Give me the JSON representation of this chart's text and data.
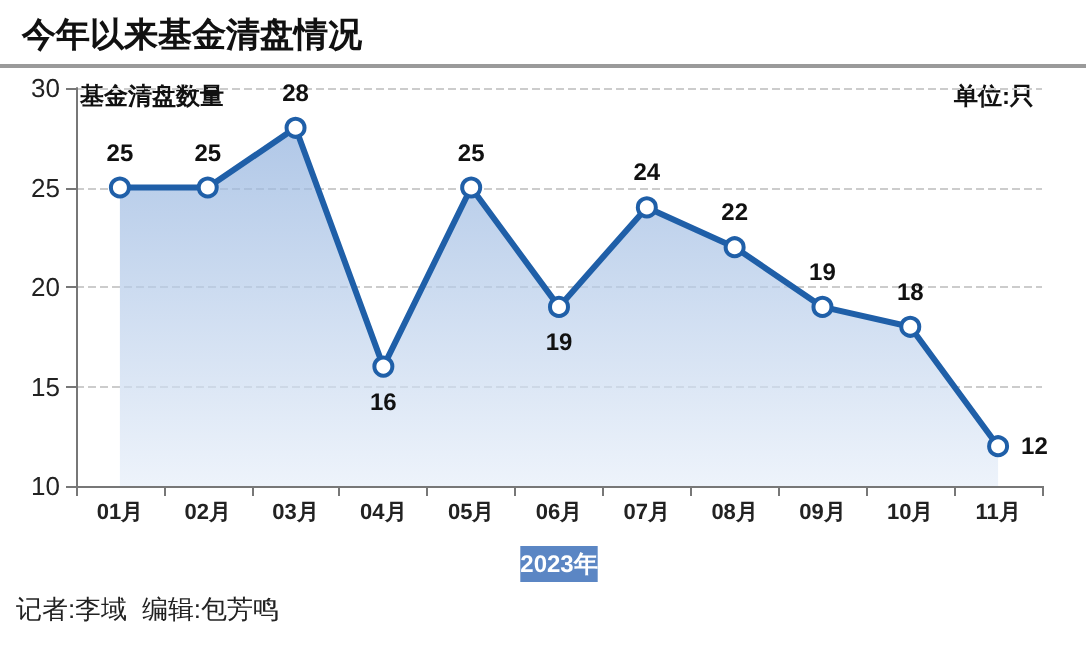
{
  "chart_data": {
    "type": "area",
    "title": "今年以来基金清盘情况",
    "ylabel": "基金清盘数量",
    "xlabel": "2023年",
    "categories": [
      "01月",
      "02月",
      "03月",
      "04月",
      "05月",
      "06月",
      "07月",
      "08月",
      "09月",
      "10月",
      "11月"
    ],
    "values": [
      25,
      25,
      28,
      16,
      25,
      19,
      24,
      22,
      19,
      18,
      12
    ],
    "color": "#1f5fa8",
    "ylim": [
      10,
      30
    ],
    "yticks": [
      10,
      15,
      20,
      25,
      30
    ],
    "grid": "y",
    "marker": "circle",
    "data_labels": true,
    "annotations": [
      "单位:只",
      "记者:李域  编辑:包芳鸣"
    ]
  }
}
